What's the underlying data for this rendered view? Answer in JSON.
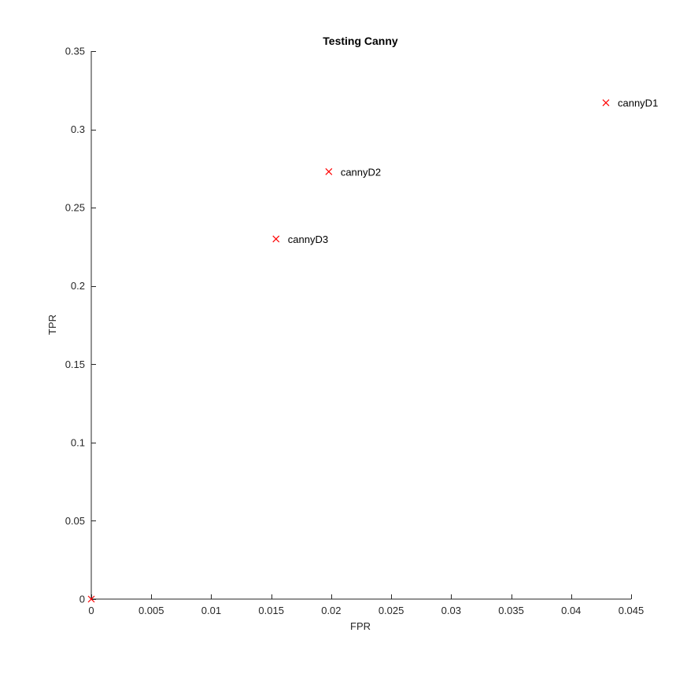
{
  "chart_data": {
    "type": "scatter",
    "title": "Testing Canny",
    "xlabel": "FPR",
    "ylabel": "TPR",
    "xlim": [
      0,
      0.045
    ],
    "ylim": [
      0,
      0.35
    ],
    "xticks": [
      0,
      0.005,
      0.01,
      0.015,
      0.02,
      0.025,
      0.03,
      0.035,
      0.04,
      0.045
    ],
    "xtick_labels": [
      "0",
      "0.005",
      "0.01",
      "0.015",
      "0.02",
      "0.025",
      "0.03",
      "0.035",
      "0.04",
      "0.045"
    ],
    "yticks": [
      0,
      0.05,
      0.1,
      0.15,
      0.2,
      0.25,
      0.3,
      0.35
    ],
    "ytick_labels": [
      "0",
      "0.05",
      "0.1",
      "0.15",
      "0.2",
      "0.25",
      "0.3",
      "0.35"
    ],
    "grid": false,
    "marker": "x",
    "marker_color": "#ff0000",
    "points": [
      {
        "x": 0.0429,
        "y": 0.317,
        "label": "cannyD1"
      },
      {
        "x": 0.0198,
        "y": 0.273,
        "label": "cannyD2"
      },
      {
        "x": 0.0154,
        "y": 0.23,
        "label": "cannyD3"
      },
      {
        "x": 0,
        "y": 0,
        "label": ""
      }
    ]
  }
}
